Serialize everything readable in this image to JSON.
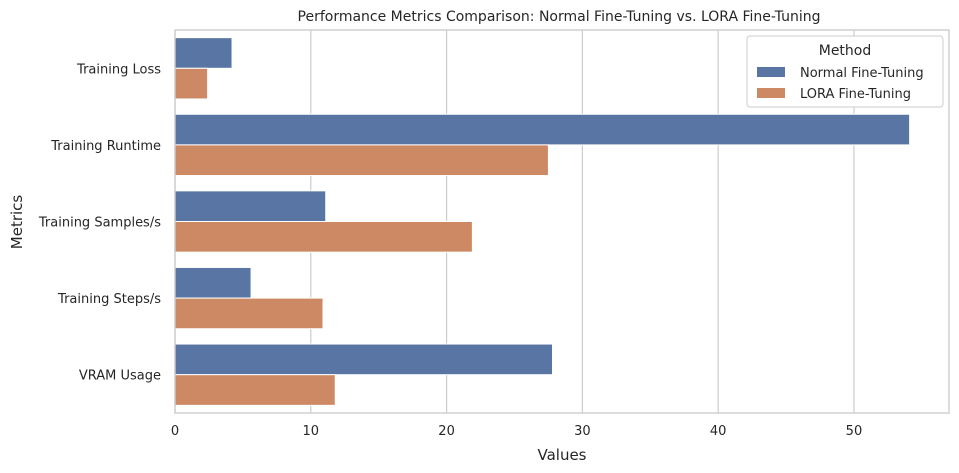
{
  "chart_data": {
    "type": "bar",
    "orientation": "horizontal",
    "title": "Performance Metrics Comparison: Normal Fine-Tuning vs. LORA Fine-Tuning",
    "xlabel": "Values",
    "ylabel": "Metrics",
    "categories": [
      "Training Loss",
      "Training Runtime",
      "Training Samples/s",
      "Training Steps/s",
      "VRAM Usage"
    ],
    "xlim": [
      0,
      57
    ],
    "xticks": [
      0,
      10,
      20,
      30,
      40,
      50
    ],
    "grid": "vertical",
    "legend": {
      "title": "Method",
      "position": "top-right"
    },
    "series": [
      {
        "name": "Normal Fine-Tuning",
        "color": "#5875a4",
        "values": [
          4.2,
          54.1,
          11.1,
          5.6,
          27.8
        ]
      },
      {
        "name": "LORA Fine-Tuning",
        "color": "#cc8963",
        "values": [
          2.4,
          27.5,
          21.9,
          10.9,
          11.8
        ]
      }
    ]
  }
}
